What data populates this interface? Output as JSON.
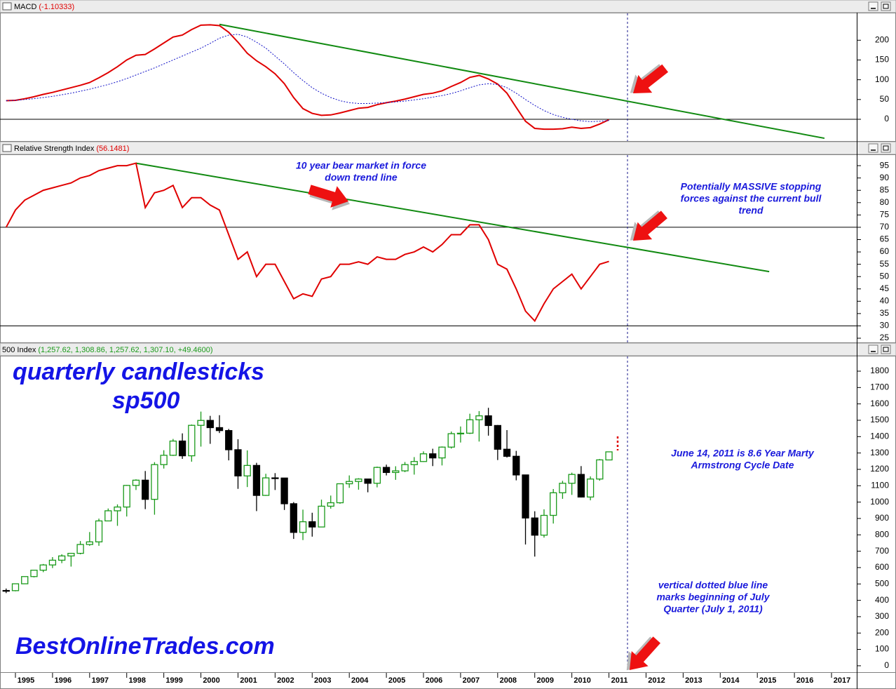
{
  "chart_data": [
    {
      "type": "line",
      "title": "MACD",
      "value_label": "(-1.10333)",
      "x": [
        1994.75,
        1995,
        1995.25,
        1995.5,
        1995.75,
        1996,
        1996.25,
        1996.5,
        1996.75,
        1997,
        1997.25,
        1997.5,
        1997.75,
        1998,
        1998.25,
        1998.5,
        1998.75,
        1999,
        1999.25,
        1999.5,
        1999.75,
        2000,
        2000.25,
        2000.5,
        2000.75,
        2001,
        2001.25,
        2001.5,
        2001.75,
        2002,
        2002.25,
        2002.5,
        2002.75,
        2003,
        2003.25,
        2003.5,
        2003.75,
        2004,
        2004.25,
        2004.5,
        2004.75,
        2005,
        2005.25,
        2005.5,
        2005.75,
        2006,
        2006.25,
        2006.5,
        2006.75,
        2007,
        2007.25,
        2007.5,
        2007.75,
        2008,
        2008.25,
        2008.5,
        2008.75,
        2009,
        2009.25,
        2009.5,
        2009.75,
        2010,
        2010.25,
        2010.5,
        2010.75,
        2011
      ],
      "series": [
        {
          "color": "#e00000",
          "style": "solid",
          "values": [
            47,
            48,
            52,
            57,
            63,
            68,
            74,
            80,
            86,
            93,
            105,
            118,
            133,
            150,
            162,
            164,
            178,
            193,
            208,
            213,
            227,
            238,
            239,
            237,
            220,
            195,
            167,
            148,
            133,
            115,
            90,
            55,
            27,
            15,
            10,
            11,
            16,
            22,
            28,
            30,
            37,
            42,
            46,
            51,
            57,
            63,
            66,
            72,
            83,
            93,
            106,
            111,
            102,
            89,
            66,
            30,
            -5,
            -23,
            -25,
            -25,
            -24,
            -20,
            -23,
            -21,
            -12,
            -1.1
          ]
        },
        {
          "color": "#1010c8",
          "style": "dotted",
          "values": [
            47,
            48,
            50,
            52,
            55,
            58,
            62,
            66,
            71,
            76,
            82,
            88,
            95,
            103,
            112,
            121,
            130,
            140,
            150,
            160,
            170,
            180,
            192,
            205,
            213,
            215,
            208,
            195,
            180,
            160,
            140,
            118,
            98,
            80,
            66,
            55,
            47,
            42,
            40,
            40,
            41,
            42,
            44,
            46,
            49,
            52,
            56,
            60,
            65,
            72,
            80,
            87,
            90,
            88,
            80,
            66,
            50,
            35,
            22,
            12,
            5,
            0,
            -4,
            -6,
            -5,
            -3
          ]
        }
      ],
      "trend": {
        "color": "#118a11",
        "x": [
          2000.5,
          2016.81
        ],
        "values": [
          240,
          -48
        ]
      },
      "hlines": [
        0
      ],
      "vline": 2011.5,
      "xlim": [
        1994.584,
        2017.68
      ],
      "ylim": [
        -55,
        268
      ],
      "yticks": [
        0,
        50,
        100,
        150,
        200
      ]
    },
    {
      "type": "line",
      "title": "Relative Strength Index",
      "value_label": "(56.1481)",
      "x": [
        1994.75,
        1995,
        1995.25,
        1995.5,
        1995.75,
        1996,
        1996.25,
        1996.5,
        1996.75,
        1997,
        1997.25,
        1997.5,
        1997.75,
        1998,
        1998.25,
        1998.5,
        1998.75,
        1999,
        1999.25,
        1999.5,
        1999.75,
        2000,
        2000.25,
        2000.5,
        2000.75,
        2001,
        2001.25,
        2001.5,
        2001.75,
        2002,
        2002.25,
        2002.5,
        2002.75,
        2003,
        2003.25,
        2003.5,
        2003.75,
        2004,
        2004.25,
        2004.5,
        2004.75,
        2005,
        2005.25,
        2005.5,
        2005.75,
        2006,
        2006.25,
        2006.5,
        2006.75,
        2007,
        2007.25,
        2007.5,
        2007.75,
        2008,
        2008.25,
        2008.5,
        2008.75,
        2009,
        2009.25,
        2009.5,
        2009.75,
        2010,
        2010.25,
        2010.5,
        2010.75,
        2011
      ],
      "series": [
        {
          "color": "#e00000",
          "style": "solid",
          "values": [
            70,
            77,
            81,
            83,
            85,
            86,
            87,
            88,
            90,
            91,
            93,
            94,
            95,
            95,
            96,
            78,
            84,
            85,
            87,
            78,
            82,
            82,
            79,
            77,
            67,
            57,
            60,
            50,
            55,
            55,
            48,
            41,
            43,
            42,
            49,
            50,
            55,
            55,
            56,
            55,
            58,
            57,
            57,
            59,
            60,
            62,
            60,
            63,
            67,
            67,
            71,
            71,
            65,
            55,
            53,
            45,
            36,
            32,
            39,
            45,
            48,
            51,
            45,
            50,
            55,
            56.1481
          ]
        }
      ],
      "trend": {
        "color": "#118a11",
        "x": [
          1998.25,
          2015.32
        ],
        "values": [
          96,
          52
        ]
      },
      "hlines": [
        70,
        30
      ],
      "vline": 2011.5,
      "annotations": [
        [
          "10 year bear market in force",
          "down trend line"
        ],
        [
          "Potentially MASSIVE stopping",
          "forces against the current bull",
          "trend"
        ]
      ],
      "xlim": [
        1994.584,
        2017.68
      ],
      "ylim": [
        23.3,
        99.3
      ],
      "yticks": [
        25,
        30,
        35,
        40,
        45,
        50,
        55,
        60,
        65,
        70,
        75,
        80,
        85,
        90,
        95
      ]
    },
    {
      "type": "candlestick",
      "title": "500 Index",
      "value_label": "(1,257.62, 1,308.86, 1,257.62, 1,307.10, +49.4600)",
      "x": [
        1994.75,
        1995,
        1995.25,
        1995.5,
        1995.75,
        1996,
        1996.25,
        1996.5,
        1996.75,
        1997,
        1997.25,
        1997.5,
        1997.75,
        1998,
        1998.25,
        1998.5,
        1998.75,
        1999,
        1999.25,
        1999.5,
        1999.75,
        2000,
        2000.25,
        2000.5,
        2000.75,
        2001,
        2001.25,
        2001.5,
        2001.75,
        2002,
        2002.25,
        2002.5,
        2002.75,
        2003,
        2003.25,
        2003.5,
        2003.75,
        2004,
        2004.25,
        2004.5,
        2004.75,
        2005,
        2005.25,
        2005.5,
        2005.75,
        2006,
        2006.25,
        2006.5,
        2006.75,
        2007,
        2007.25,
        2007.5,
        2007.75,
        2008,
        2008.25,
        2008.5,
        2008.75,
        2009,
        2009.25,
        2009.5,
        2009.75,
        2010,
        2010.25,
        2010.5,
        2010.75,
        2011
      ],
      "open": [
        460,
        459,
        501,
        545,
        584,
        616,
        645,
        671,
        687,
        741,
        757,
        885,
        947,
        970,
        1102,
        1134,
        1017,
        1229,
        1286,
        1373,
        1283,
        1469,
        1499,
        1455,
        1437,
        1320,
        1160,
        1224,
        1041,
        1148,
        1147,
        990,
        815,
        880,
        848,
        975,
        996,
        1112,
        1126,
        1141,
        1115,
        1212,
        1181,
        1191,
        1229,
        1248,
        1295,
        1270,
        1336,
        1418,
        1421,
        1503,
        1527,
        1468,
        1323,
        1280,
        1166,
        903,
        798,
        919,
        1057,
        1115,
        1169,
        1031,
        1141,
        1257.62
      ],
      "high": [
        472,
        503,
        546,
        586,
        622,
        664,
        681,
        690,
        762,
        817,
        899,
        961,
        986,
        1105,
        1139,
        1190,
        1244,
        1317,
        1386,
        1420,
        1474,
        1553,
        1527,
        1531,
        1447,
        1384,
        1316,
        1240,
        1173,
        1177,
        1147,
        1000,
        954,
        935,
        1015,
        1040,
        1112,
        1163,
        1146,
        1141,
        1217,
        1229,
        1219,
        1245,
        1275,
        1310,
        1326,
        1340,
        1431,
        1462,
        1540,
        1556,
        1576,
        1471,
        1440,
        1313,
        1167,
        944,
        956,
        1080,
        1130,
        1180,
        1220,
        1157,
        1263,
        1308.86
      ],
      "low": [
        444,
        455,
        501,
        540,
        572,
        597,
        627,
        606,
        681,
        733,
        733,
        885,
        855,
        912,
        1074,
        957,
        923,
        1205,
        1282,
        1264,
        1247,
        1339,
        1356,
        1422,
        1255,
        1081,
        1092,
        945,
        1038,
        1074,
        952,
        775,
        768,
        789,
        847,
        960,
        990,
        1087,
        1076,
        1060,
        1090,
        1163,
        1136,
        1183,
        1168,
        1245,
        1220,
        1224,
        1327,
        1364,
        1416,
        1370,
        1406,
        1257,
        1272,
        1133,
        741,
        667,
        783,
        869,
        1020,
        1044,
        1028,
        1011,
        1131,
        1257.62
      ],
      "close": [
        459,
        501,
        545,
        584,
        616,
        645,
        671,
        687,
        741,
        757,
        885,
        947,
        970,
        1102,
        1134,
        1017,
        1229,
        1286,
        1373,
        1283,
        1469,
        1499,
        1455,
        1437,
        1320,
        1160,
        1224,
        1041,
        1148,
        1147,
        990,
        815,
        880,
        848,
        975,
        996,
        1112,
        1126,
        1141,
        1115,
        1212,
        1181,
        1191,
        1229,
        1248,
        1295,
        1270,
        1336,
        1418,
        1421,
        1503,
        1527,
        1468,
        1323,
        1280,
        1166,
        903,
        798,
        919,
        1057,
        1115,
        1169,
        1031,
        1141,
        1258,
        1307.1
      ],
      "up_color": "#1a9a1a",
      "down_color": "#000000",
      "vline": 2011.5,
      "big_labels": [
        "quarterly candlesticks",
        "sp500",
        "BestOnlineTrades.com"
      ],
      "annotations": [
        [
          "June 14, 2011 is 8.6 Year Marty",
          "Armstrong Cycle Date"
        ],
        [
          "vertical dotted blue line",
          "marks beginning of July",
          "Quarter (July 1, 2011)"
        ]
      ],
      "xlim": [
        1994.584,
        2017.68
      ],
      "ylim": [
        -39,
        1890
      ],
      "yticks": [
        0,
        100,
        200,
        300,
        400,
        500,
        600,
        700,
        800,
        900,
        1000,
        1100,
        1200,
        1300,
        1400,
        1500,
        1600,
        1700,
        1800
      ],
      "xticks": [
        1995,
        1996,
        1997,
        1998,
        1999,
        2000,
        2001,
        2002,
        2003,
        2004,
        2005,
        2006,
        2007,
        2008,
        2009,
        2010,
        2011,
        2012,
        2013,
        2014,
        2015,
        2016,
        2017
      ]
    }
  ]
}
